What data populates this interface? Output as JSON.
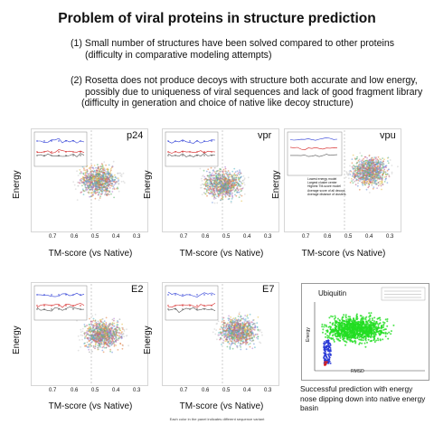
{
  "title": "Problem of viral proteins in structure prediction",
  "points": [
    {
      "line1": "(1) Small number of structures have been solved compared to other proteins",
      "line2": "(difficulty in comparative modeling attempts)"
    },
    {
      "line1": "(2) Rosetta does not produce decoys with structure both accurate and low energy,",
      "line2": "possibly due to uniqueness of viral sequences and lack of good fragment library",
      "line3": "(difficulty in generation and choice of native like decoy structure)"
    }
  ],
  "axis": {
    "ylabel": "Energy",
    "xlabel": "TM-score (vs Native)",
    "xticks": [
      "0.7",
      "0.6",
      "0.5",
      "0.4",
      "0.3"
    ]
  },
  "panels": [
    {
      "id": "p24",
      "label": "p24"
    },
    {
      "id": "vpr",
      "label": "vpr"
    },
    {
      "id": "vpu",
      "label": "vpu"
    },
    {
      "id": "e2",
      "label": "E2"
    },
    {
      "id": "e7",
      "label": "E7"
    }
  ],
  "vpu_legend": [
    "Lowest energy model",
    "Largest cluster center",
    "Highest TM-score model",
    "Average score of all decoys",
    "Average distance of clusters"
  ],
  "ubiquitin": {
    "label": "Ubiquitin",
    "ylabel": "Energy",
    "xlabel": "RMSD"
  },
  "caption": "Successful prediction with energy nose dipping down into native energy basin",
  "footnote": "Each color in the panel indicates different sequence variant",
  "colors": {
    "blue": "#2b3bd6",
    "red": "#d42020",
    "green": "#22dd22",
    "scatter_gray": "#b8b8b8"
  }
}
